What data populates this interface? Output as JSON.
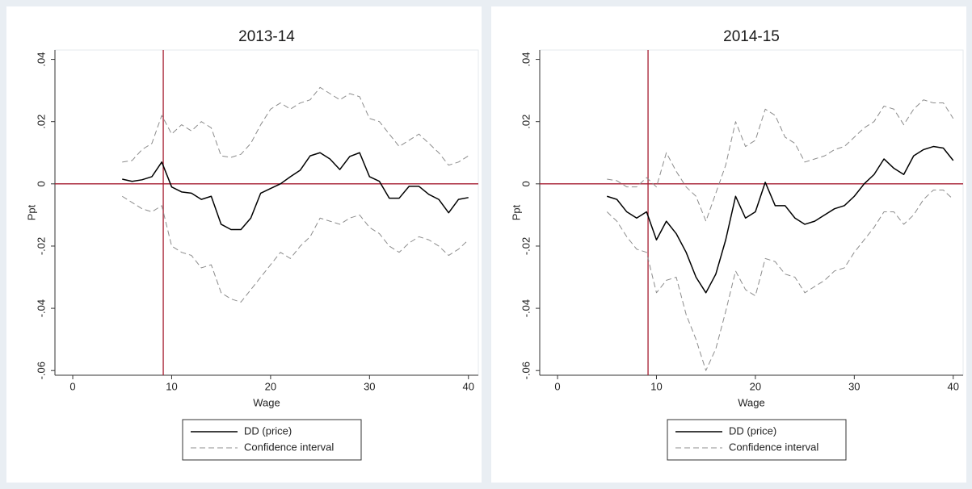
{
  "chart_data": [
    {
      "type": "line",
      "title": "2013-14",
      "x_label": "Wage",
      "y_label": "Ppt",
      "x": [
        5,
        6,
        7,
        8,
        9,
        10,
        11,
        12,
        13,
        14,
        15,
        16,
        17,
        18,
        19,
        20,
        21,
        22,
        23,
        24,
        25,
        26,
        27,
        28,
        29,
        30,
        31,
        32,
        33,
        34,
        35,
        36,
        37,
        38,
        39,
        40
      ],
      "series": [
        {
          "name": "DD (price)",
          "color": "#000000",
          "dash": "solid",
          "values": [
            0.0015,
            0.0008,
            0.0013,
            0.0023,
            0.007,
            -0.001,
            -0.0026,
            -0.003,
            -0.005,
            -0.004,
            -0.013,
            -0.0147,
            -0.0147,
            -0.011,
            -0.003,
            -0.0015,
            0,
            0.0023,
            0.0044,
            0.009,
            0.01,
            0.008,
            0.0046,
            0.0088,
            0.01,
            0.0023,
            0.0008,
            -0.0046,
            -0.0046,
            -0.0008,
            -0.0008,
            -0.0034,
            -0.005,
            -0.0093,
            -0.005,
            -0.0044
          ]
        },
        {
          "name": "Confidence interval",
          "color": "#8c8c8c",
          "dash": "dashed",
          "upper": [
            0.007,
            0.0075,
            0.011,
            0.013,
            0.022,
            0.016,
            0.019,
            0.017,
            0.02,
            0.018,
            0.009,
            0.0085,
            0.0095,
            0.013,
            0.019,
            0.024,
            0.026,
            0.024,
            0.026,
            0.027,
            0.031,
            0.029,
            0.027,
            0.029,
            0.028,
            0.021,
            0.02,
            0.016,
            0.012,
            0.014,
            0.016,
            0.013,
            0.01,
            0.006,
            0.007,
            0.009
          ],
          "lower": [
            -0.004,
            -0.006,
            -0.008,
            -0.009,
            -0.007,
            -0.02,
            -0.022,
            -0.023,
            -0.027,
            -0.026,
            -0.035,
            -0.037,
            -0.038,
            -0.034,
            -0.03,
            -0.026,
            -0.022,
            -0.024,
            -0.02,
            -0.017,
            -0.011,
            -0.012,
            -0.013,
            -0.011,
            -0.01,
            -0.014,
            -0.016,
            -0.02,
            -0.022,
            -0.019,
            -0.017,
            -0.018,
            -0.02,
            -0.023,
            -0.021,
            -0.018
          ]
        }
      ],
      "reference_lines": {
        "x": 9.15,
        "y": 0,
        "color": "#a51c30"
      },
      "xlim": [
        -1.8,
        41
      ],
      "xticks": [
        0,
        10,
        20,
        30,
        40
      ],
      "ylim": [
        -0.0615,
        0.043
      ],
      "yticks": [
        {
          "value": -0.06,
          "label": "-.06"
        },
        {
          "value": -0.04,
          "label": "-.04"
        },
        {
          "value": -0.02,
          "label": "-.02"
        },
        0,
        {
          "value": 0.02,
          "label": ".02"
        },
        {
          "value": 0.04,
          "label": ".04"
        }
      ]
    },
    {
      "type": "line",
      "title": "2014-15",
      "x_label": "Wage",
      "y_label": "Ppt",
      "x": [
        5,
        6,
        7,
        8,
        9,
        10,
        11,
        12,
        13,
        14,
        15,
        16,
        17,
        18,
        19,
        20,
        21,
        22,
        23,
        24,
        25,
        26,
        27,
        28,
        29,
        30,
        31,
        32,
        33,
        34,
        35,
        36,
        37,
        38,
        39,
        40
      ],
      "series": [
        {
          "name": "DD (price)",
          "color": "#000000",
          "dash": "solid",
          "values": [
            -0.004,
            -0.005,
            -0.009,
            -0.011,
            -0.009,
            -0.018,
            -0.012,
            -0.016,
            -0.022,
            -0.03,
            -0.035,
            -0.029,
            -0.018,
            -0.004,
            -0.011,
            -0.009,
            0.0005,
            -0.007,
            -0.007,
            -0.011,
            -0.013,
            -0.012,
            -0.01,
            -0.008,
            -0.007,
            -0.004,
            0,
            0.003,
            0.008,
            0.005,
            0.003,
            0.009,
            0.011,
            0.012,
            0.0115,
            0.0075
          ]
        },
        {
          "name": "Confidence interval",
          "color": "#8c8c8c",
          "dash": "dashed",
          "upper": [
            0.0015,
            0.001,
            -0.001,
            -0.001,
            0.002,
            -0.001,
            0.01,
            0.004,
            -0.001,
            -0.004,
            -0.012,
            -0.003,
            0.006,
            0.02,
            0.012,
            0.014,
            0.024,
            0.022,
            0.015,
            0.013,
            0.007,
            0.008,
            0.009,
            0.011,
            0.012,
            0.015,
            0.018,
            0.02,
            0.025,
            0.024,
            0.019,
            0.024,
            0.027,
            0.026,
            0.026,
            0.021
          ],
          "lower": [
            -0.009,
            -0.012,
            -0.017,
            -0.021,
            -0.022,
            -0.035,
            -0.031,
            -0.03,
            -0.042,
            -0.05,
            -0.06,
            -0.053,
            -0.041,
            -0.028,
            -0.034,
            -0.036,
            -0.024,
            -0.025,
            -0.029,
            -0.03,
            -0.035,
            -0.033,
            -0.031,
            -0.028,
            -0.027,
            -0.022,
            -0.018,
            -0.014,
            -0.009,
            -0.009,
            -0.013,
            -0.01,
            -0.005,
            -0.002,
            -0.002,
            -0.005
          ]
        }
      ],
      "reference_lines": {
        "x": 9.15,
        "y": 0,
        "color": "#a51c30"
      },
      "xlim": [
        -1.8,
        41
      ],
      "xticks": [
        0,
        10,
        20,
        30,
        40
      ],
      "ylim": [
        -0.0615,
        0.043
      ],
      "yticks": [
        {
          "value": -0.06,
          "label": "-.06"
        },
        {
          "value": -0.04,
          "label": "-.04"
        },
        {
          "value": -0.02,
          "label": "-.02"
        },
        0,
        {
          "value": 0.02,
          "label": ".02"
        },
        {
          "value": 0.04,
          "label": ".04"
        }
      ]
    }
  ]
}
